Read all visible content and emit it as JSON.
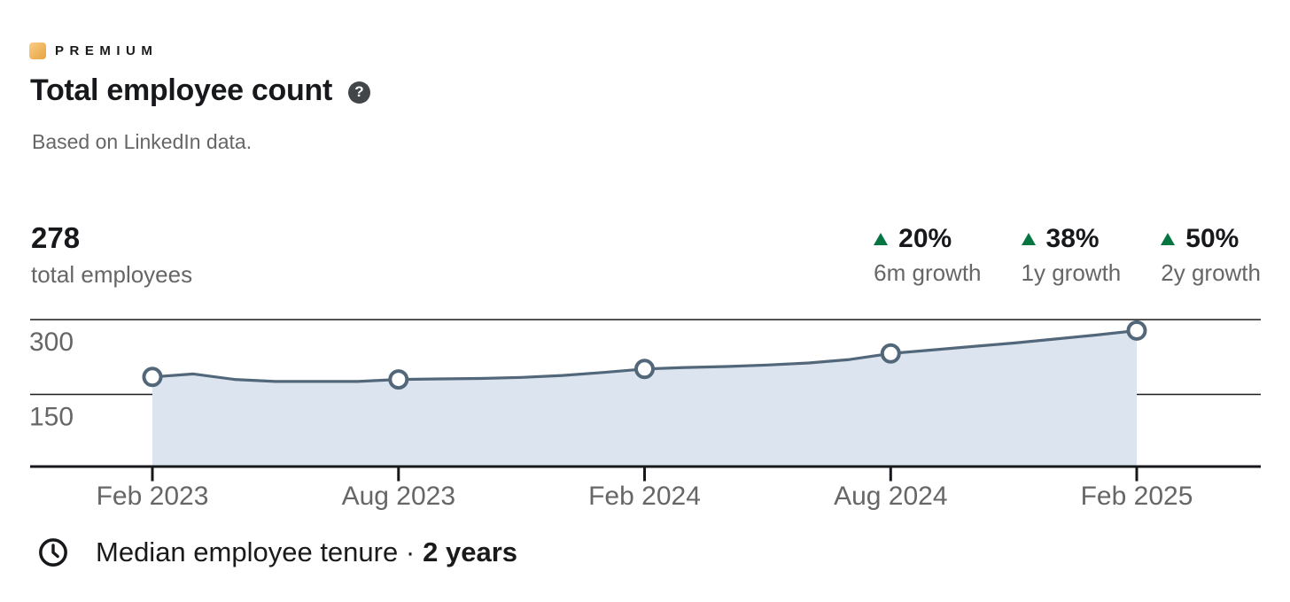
{
  "header": {
    "premium_label": "PREMIUM",
    "premium_gradient": [
      "#f9cd87",
      "#e7a33e"
    ],
    "title": "Total employee count",
    "help_glyph": "?",
    "subtitle": "Based on LinkedIn data."
  },
  "stats": {
    "total": {
      "value": "278",
      "label": "total employees"
    },
    "up_color": "#057642",
    "growth": [
      {
        "value": "20%",
        "label": "6m growth",
        "direction": "up"
      },
      {
        "value": "38%",
        "label": "1y growth",
        "direction": "up"
      },
      {
        "value": "50%",
        "label": "2y growth",
        "direction": "up"
      }
    ]
  },
  "chart_data": {
    "type": "area",
    "title": "Total employee count",
    "xlabel": "",
    "ylabel": "total employees",
    "x": [
      "Feb 2023",
      "Mar 2023",
      "Apr 2023",
      "May 2023",
      "Jun 2023",
      "Jul 2023",
      "Aug 2023",
      "Sep 2023",
      "Oct 2023",
      "Nov 2023",
      "Dec 2023",
      "Jan 2024",
      "Feb 2024",
      "Mar 2024",
      "Apr 2024",
      "May 2024",
      "Jun 2024",
      "Jul 2024",
      "Aug 2024",
      "Sep 2024",
      "Oct 2024",
      "Nov 2024",
      "Dec 2024",
      "Jan 2025",
      "Feb 2025"
    ],
    "values": [
      185,
      191,
      180,
      176,
      176,
      176,
      180,
      181,
      182,
      184,
      188,
      194,
      201,
      204,
      206,
      209,
      213,
      220,
      232,
      239,
      246,
      253,
      261,
      269,
      278
    ],
    "markers": [
      {
        "x": "Feb 2023",
        "value": 185
      },
      {
        "x": "Aug 2023",
        "value": 180
      },
      {
        "x": "Feb 2024",
        "value": 201
      },
      {
        "x": "Aug 2024",
        "value": 232
      },
      {
        "x": "Feb 2025",
        "value": 278
      }
    ],
    "x_tick_labels": [
      "Feb 2023",
      "Aug 2023",
      "Feb 2024",
      "Aug 2024",
      "Feb 2025"
    ],
    "y_ticks": [
      300,
      150
    ],
    "ylim": [
      0,
      330
    ],
    "grid": true,
    "legend": false,
    "colors": {
      "line": "#53677a",
      "fill": "#dce5ef",
      "marker_fill": "#ffffff",
      "grid": "#1a1a1a",
      "axis": "#16181b",
      "tick_text": "#666666"
    }
  },
  "footer": {
    "tenure_label": "Median employee tenure ·",
    "tenure_value": "2 years"
  }
}
